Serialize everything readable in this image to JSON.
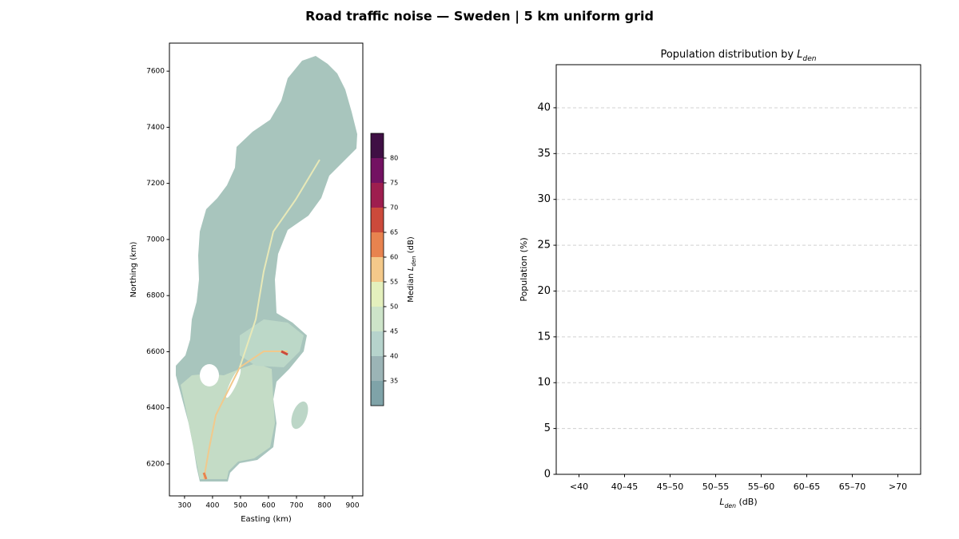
{
  "title": "Road traffic noise — Sweden  |  5 km uniform grid",
  "chart_data": [
    {
      "type": "heatmap",
      "xlabel": "Easting (km)",
      "ylabel": "Northing (km)",
      "xlim": [
        246,
        937
      ],
      "xticks": [
        300,
        400,
        500,
        600,
        700,
        800,
        900
      ],
      "ylim": [
        6086,
        7700
      ],
      "yticks": [
        6200,
        6400,
        6600,
        6800,
        7000,
        7200,
        7400,
        7600
      ],
      "colorbar": {
        "label": {
          "prefix": "Median ",
          "symbol": "L",
          "sub": "den",
          "suffix": " (dB)"
        },
        "levels": [
          30,
          35,
          40,
          45,
          50,
          55,
          60,
          65,
          70,
          75,
          80,
          85
        ],
        "colors": [
          "#7fa3a8",
          "#9bb4b6",
          "#b6d3cc",
          "#cde4c9",
          "#e4f0bd",
          "#f4c98a",
          "#e8834f",
          "#cc4a3b",
          "#9e1e4f",
          "#731262",
          "#3f0f44"
        ],
        "ticks": [
          35,
          40,
          45,
          50,
          55,
          60,
          65,
          70,
          75,
          80
        ]
      }
    },
    {
      "type": "bar",
      "title": {
        "prefix": "Population distribution by ",
        "symbol": "L",
        "sub": "den",
        "suffix": ""
      },
      "xlabel": {
        "prefix": "",
        "symbol": "L",
        "sub": "den",
        "suffix": " (dB)"
      },
      "ylabel": "Population (%)",
      "categories": [
        "<40",
        "40–45",
        "45–50",
        "50–55",
        "55–60",
        "60–65",
        "65–70",
        ">70"
      ],
      "ylim": [
        0,
        44.7
      ],
      "yticks": [
        0,
        5,
        10,
        15,
        20,
        25,
        30,
        35,
        40
      ],
      "grid": true
    }
  ]
}
